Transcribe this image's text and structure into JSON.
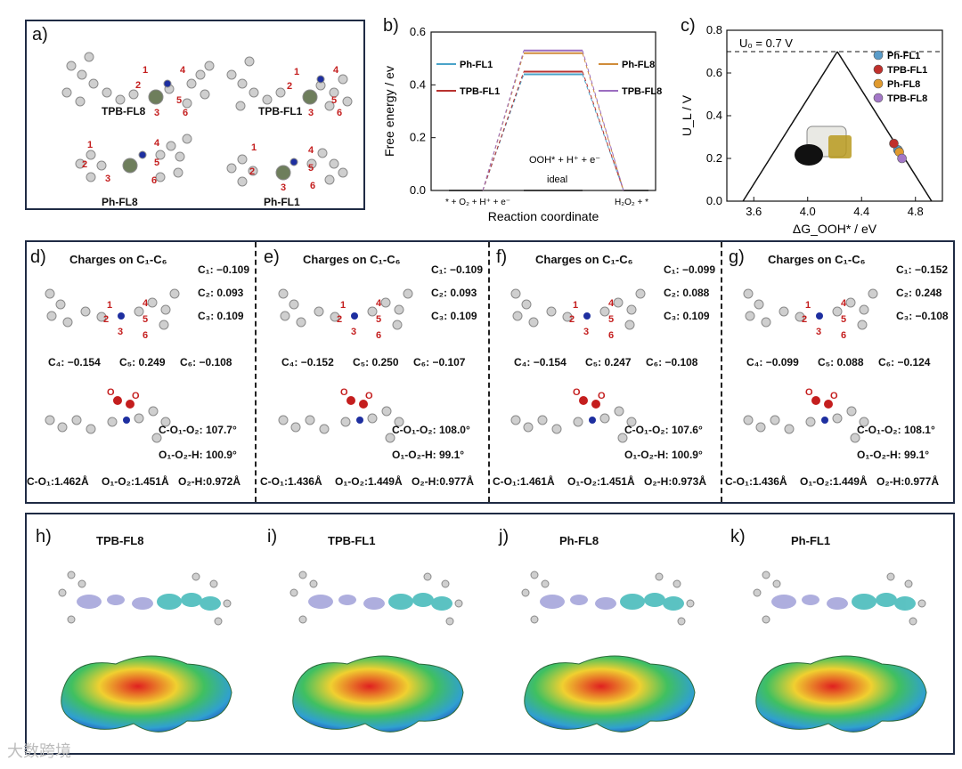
{
  "panel_a": {
    "label": "a)",
    "molecules": [
      "TPB-FL8",
      "TPB-FL1",
      "Ph-FL8",
      "Ph-FL1"
    ]
  },
  "panel_b": {
    "label": "b)",
    "ylabel": "Free energy / ev",
    "xlabel": "Reaction coordinate",
    "state_left": "* + O₂ + H⁺ + e⁻",
    "state_mid": "OOH* + H⁺ + e⁻",
    "state_right": "H₂O₂ + *",
    "ideal_label": "ideal"
  },
  "panel_c": {
    "label": "c)",
    "ylabel": "U_L / V",
    "xlabel": "ΔG_OOH* / eV",
    "u0_label": "U₀ = 0.7 V"
  },
  "chart_data": [
    {
      "type": "line",
      "ylim": [
        0,
        0.6
      ],
      "yticks": [
        "0.0",
        "0.2",
        "0.4",
        "0.6"
      ],
      "legend": [
        "Ph-FL1",
        "TPB-FL1",
        "Ph-FL8",
        "TPB-FL8"
      ],
      "series": [
        {
          "name": "Ph-FL1",
          "values": [
            0,
            0.44,
            0
          ],
          "color": "#4aa3c9"
        },
        {
          "name": "TPB-FL1",
          "values": [
            0,
            0.45,
            0
          ],
          "color": "#b8322f"
        },
        {
          "name": "Ph-FL8",
          "values": [
            0,
            0.52,
            0
          ],
          "color": "#d08c3a"
        },
        {
          "name": "TPB-FL8",
          "values": [
            0,
            0.53,
            0
          ],
          "color": "#9b6dc0"
        }
      ]
    },
    {
      "type": "scatter",
      "xlim": [
        3.4,
        5.0
      ],
      "ylim": [
        0,
        0.8
      ],
      "xticks": [
        "3.6",
        "4.0",
        "4.4",
        "4.8"
      ],
      "yticks": [
        "0.0",
        "0.2",
        "0.4",
        "0.6",
        "0.8"
      ],
      "legend": [
        "Ph-FL1",
        "TPB-FL1",
        "Ph-FL8",
        "TPB-FL8"
      ],
      "series": [
        {
          "name": "Ph-FL1",
          "x": [
            4.67
          ],
          "y": [
            0.24
          ],
          "color": "#5a9cc9"
        },
        {
          "name": "TPB-FL1",
          "x": [
            4.64
          ],
          "y": [
            0.27
          ],
          "color": "#c0302c"
        },
        {
          "name": "Ph-FL8",
          "x": [
            4.68
          ],
          "y": [
            0.23
          ],
          "color": "#e09a2e"
        },
        {
          "name": "TPB-FL8",
          "x": [
            4.7
          ],
          "y": [
            0.2
          ],
          "color": "#a377c7"
        }
      ]
    }
  ],
  "charges_title": "Charges on C₁-C₆",
  "charge_panels": [
    {
      "label": "d)",
      "c1": "C₁: −0.109",
      "c2": "C₂:   0.093",
      "c3": "C₃:   0.109",
      "c4": "C₄: −0.154",
      "c5": "C₅: 0.249",
      "c6": "C₆: −0.108",
      "angle1": "C-O₁-O₂: 107.7°",
      "angle2": "O₁-O₂-H: 100.9°",
      "b1": "C-O₁:1.462Å",
      "b2": "O₁-O₂:1.451Å",
      "b3": "O₂-H:0.972Å"
    },
    {
      "label": "e)",
      "c1": "C₁: −0.109",
      "c2": "C₂:   0.093",
      "c3": "C₃:   0.109",
      "c4": "C₄: −0.152",
      "c5": "C₅: 0.250",
      "c6": "C₆: −0.107",
      "angle1": "C-O₁-O₂: 108.0°",
      "angle2": "O₁-O₂-H: 99.1°",
      "b1": "C-O₁:1.436Å",
      "b2": "O₁-O₂:1.449Å",
      "b3": "O₂-H:0.977Å"
    },
    {
      "label": "f)",
      "c1": "C₁: −0.099",
      "c2": "C₂:   0.088",
      "c3": "C₃:   0.109",
      "c4": "C₄: −0.154",
      "c5": "C₅: 0.247",
      "c6": "C₆: −0.108",
      "angle1": "C-O₁-O₂: 107.6°",
      "angle2": "O₁-O₂-H: 100.9°",
      "b1": "C-O₁:1.461Å",
      "b2": "O₁-O₂:1.451Å",
      "b3": "O₂-H:0.973Å"
    },
    {
      "label": "g)",
      "c1": "C₁: −0.152",
      "c2": "C₂:   0.248",
      "c3": "C₃: −0.108",
      "c4": "C₄: −0.099",
      "c5": "C₅: 0.088",
      "c6": "C₆: −0.124",
      "angle1": "C-O₁-O₂: 108.1°",
      "angle2": "O₁-O₂-H: 99.1°",
      "b1": "C-O₁:1.436Å",
      "b2": "O₁-O₂:1.449Å",
      "b3": "O₂-H:0.977Å"
    }
  ],
  "esp_panels": [
    {
      "label": "h)",
      "title": "TPB-FL8"
    },
    {
      "label": "i)",
      "title": "TPB-FL1"
    },
    {
      "label": "j)",
      "title": "Ph-FL8"
    },
    {
      "label": "k)",
      "title": "Ph-FL1"
    }
  ],
  "watermark": "大数跨境"
}
